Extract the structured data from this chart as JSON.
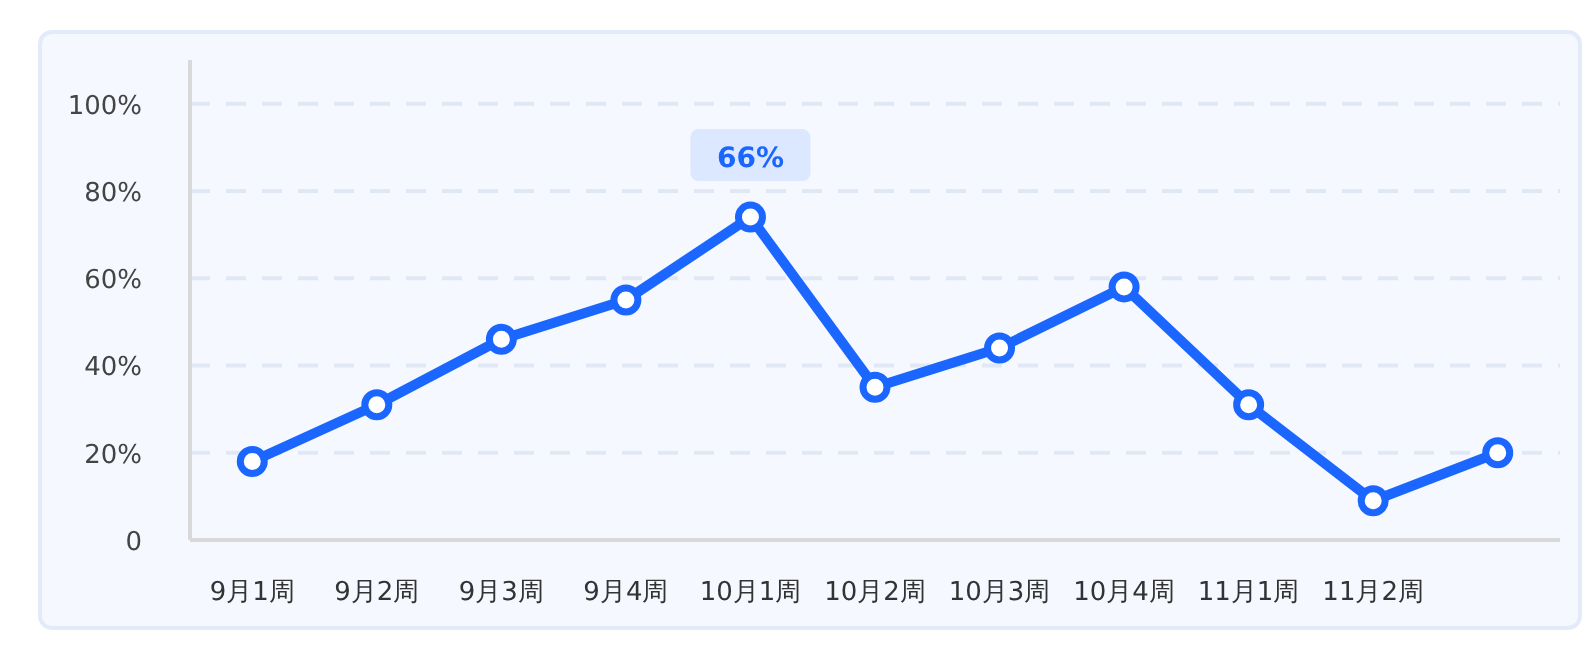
{
  "chart_data": {
    "type": "line",
    "categories": [
      "9月1周",
      "9月2周",
      "9月3周",
      "9月4周",
      "10月1周",
      "10月2周",
      "10月3周",
      "10月4周",
      "11月1周",
      "11月2周",
      null
    ],
    "series": [
      {
        "color": "#1a66ff",
        "values": [
          18,
          31,
          46,
          55,
          74,
          35,
          44,
          58,
          31,
          9,
          20
        ]
      }
    ],
    "ylim": [
      0,
      110
    ],
    "yticks": [
      {
        "value": 0,
        "label": "0"
      },
      {
        "value": 20,
        "label": "20%"
      },
      {
        "value": 40,
        "label": "40%"
      },
      {
        "value": 60,
        "label": "60%"
      },
      {
        "value": 80,
        "label": "80%"
      },
      {
        "value": 100,
        "label": "100%"
      }
    ],
    "grid": "y",
    "marker": "circle",
    "line_style": "solid",
    "annotations": [
      {
        "text": "66%",
        "x": "10月1周",
        "y": 74
      }
    ]
  }
}
